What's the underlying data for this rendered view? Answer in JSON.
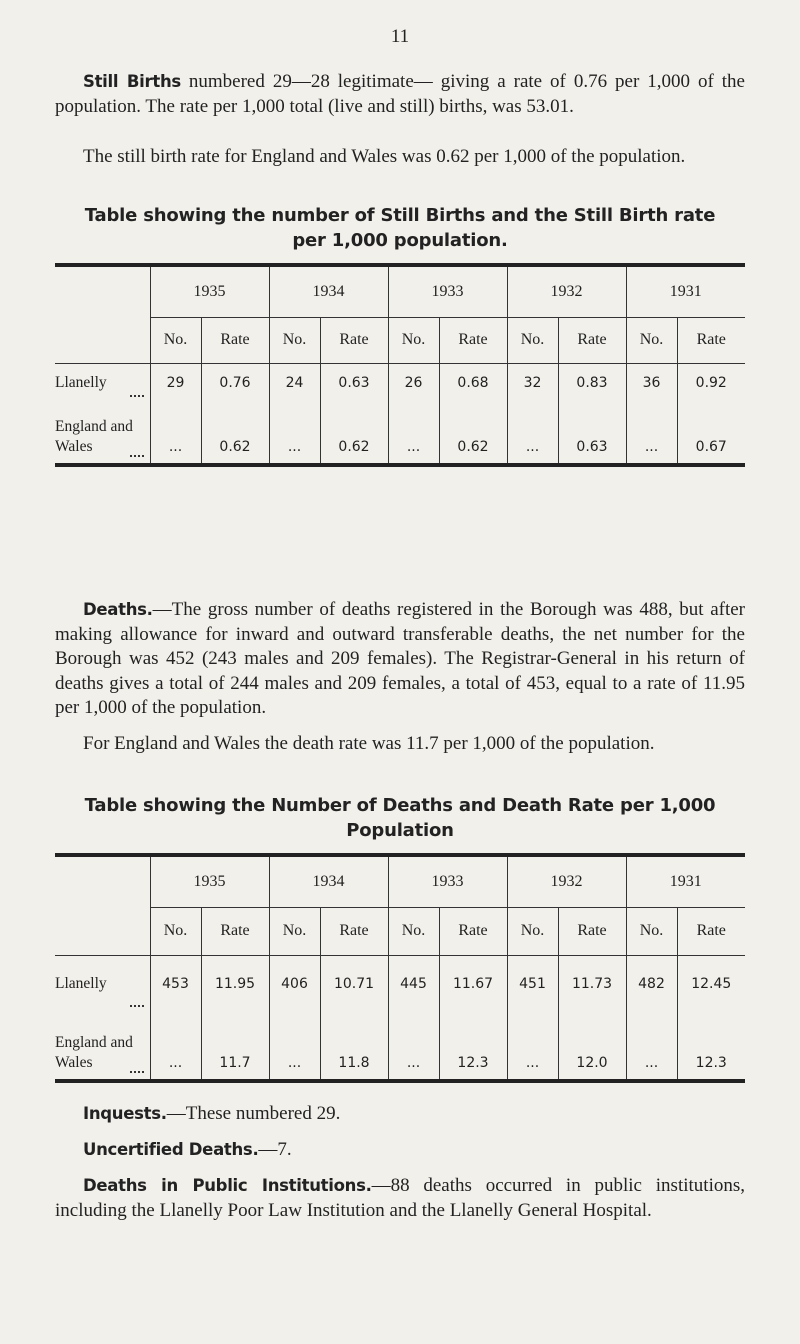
{
  "page_number": "11",
  "still_births": {
    "lead": "Still Births",
    "text": "numbered 29—28 legitimate— giving a rate of 0.76 per 1,000 of the population. The rate per 1,000 total (live and still) births, was 53.01.",
    "note": "The still birth rate for England and Wales was 0.62 per 1,000 of the population."
  },
  "table1": {
    "title": "Table showing the number of Still Births and the Still Birth rate per 1,000 population.",
    "years": [
      "1935",
      "1934",
      "1933",
      "1932",
      "1931"
    ],
    "subheaders": [
      "No.",
      "Rate"
    ],
    "rows": [
      {
        "label": "Llanelly",
        "cells": [
          "29",
          "0.76",
          "24",
          "0.63",
          "26",
          "0.68",
          "32",
          "0.83",
          "36",
          "0.92"
        ]
      },
      {
        "label": "England and Wales",
        "cells": [
          "...",
          "0.62",
          "...",
          "0.62",
          "...",
          "0.62",
          "...",
          "0.63",
          "...",
          "0.67"
        ]
      }
    ]
  },
  "deaths": {
    "lead": "Deaths.",
    "text": "—The gross number of deaths registered in the Borough was 488, but after making allowance for inward and outward transferable deaths, the net number for the Borough was 452 (243 males and 209 females). The Registrar-General in his return of deaths gives a total of 244 males and 209 females, a total of 453, equal to a rate of 11.95 per 1,000 of the population.",
    "note": "For England and Wales the death rate was 11.7 per 1,000 of the population."
  },
  "table2": {
    "title": "Table showing the Number of Deaths and Death Rate per 1,000 Population",
    "years": [
      "1935",
      "1934",
      "1933",
      "1932",
      "1931"
    ],
    "subheaders": [
      "No.",
      "Rate"
    ],
    "rows": [
      {
        "label": "Llanelly",
        "cells": [
          "453",
          "11.95",
          "406",
          "10.71",
          "445",
          "11.67",
          "451",
          "11.73",
          "482",
          "12.45"
        ]
      },
      {
        "label": "England and Wales",
        "cells": [
          "...",
          "11.7",
          "...",
          "11.8",
          "...",
          "12.3",
          "...",
          "12.0",
          "...",
          "12.3"
        ]
      }
    ]
  },
  "inquests": {
    "lead": "Inquests.",
    "text": "—These numbered 29."
  },
  "uncertified": {
    "lead": "Uncertified Deaths.",
    "text": "—7."
  },
  "public_institutions": {
    "lead": "Deaths in Public Institutions.",
    "text": "—88 deaths occurred in public institutions, including the Llanelly Poor Law Institution and the Llanelly General Hospital."
  }
}
